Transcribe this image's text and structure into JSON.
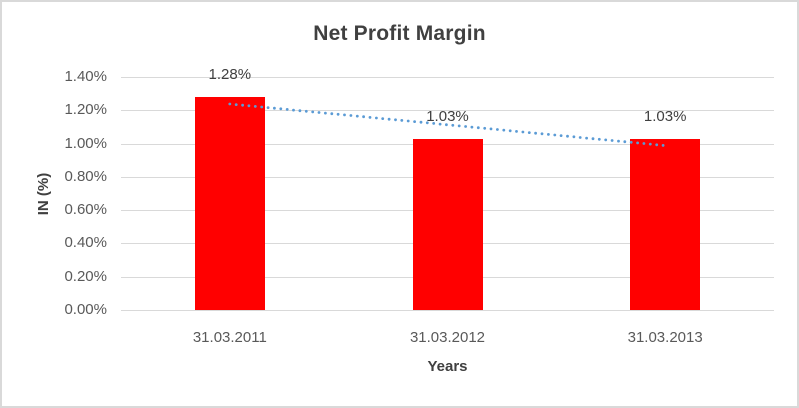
{
  "window": {
    "background": "#FFFFFF",
    "border_color": "#D9D9D9"
  },
  "chart_data": {
    "type": "bar",
    "title": "Net Profit Margin",
    "categories": [
      "31.03.2011",
      "31.03.2012",
      "31.03.2013"
    ],
    "values": [
      1.28,
      1.03,
      1.03
    ],
    "data_labels": [
      "1.28%",
      "1.03%",
      "1.03%"
    ],
    "xlabel": "Years",
    "ylabel": "IN (%)",
    "yticks": [
      "0.00%",
      "0.20%",
      "0.40%",
      "0.60%",
      "0.80%",
      "1.00%",
      "1.20%",
      "1.40%"
    ],
    "ylim": [
      0,
      1.4
    ],
    "grid": true,
    "legend": false,
    "bar_color": "#FF0000",
    "label_color": "#404040",
    "tick_color": "#595959",
    "gridline_color": "#D9D9D9",
    "trendline": {
      "type": "linear",
      "style": "dotted",
      "color": "#5B9BD5",
      "fit_values": [
        1.238,
        1.113,
        0.988
      ]
    }
  }
}
